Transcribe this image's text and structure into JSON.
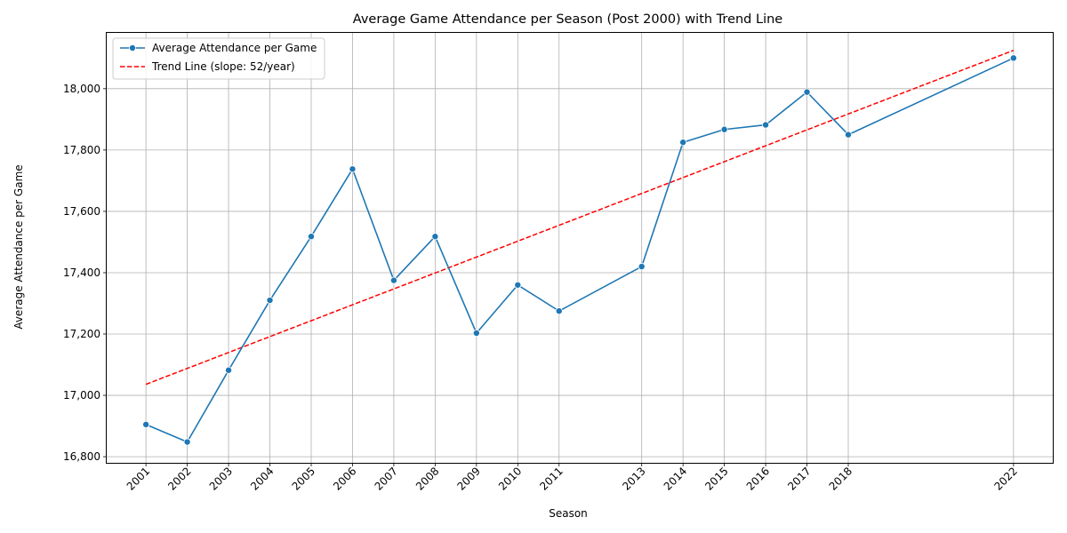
{
  "chart_data": {
    "type": "line",
    "title": "Average Game Attendance per Season (Post 2000) with Trend Line",
    "xlabel": "Season",
    "ylabel": "Average Attendance per Game",
    "x": [
      2001,
      2002,
      2003,
      2004,
      2005,
      2006,
      2007,
      2008,
      2009,
      2010,
      2011,
      2013,
      2014,
      2015,
      2016,
      2017,
      2018,
      2022
    ],
    "x_tick_labels": [
      "2001",
      "2002",
      "2003",
      "2004",
      "2005",
      "2006",
      "2007",
      "2008",
      "2009",
      "2010",
      "2011",
      "2013",
      "2014",
      "2015",
      "2016",
      "2017",
      "2018",
      "2022"
    ],
    "y_ticks": [
      16800,
      17000,
      17200,
      17400,
      17600,
      17800,
      18000
    ],
    "y_tick_labels": [
      "16,800",
      "17,000",
      "17,200",
      "17,400",
      "17,600",
      "17,800",
      "18,000"
    ],
    "xlim": [
      2000.05,
      2022.95
    ],
    "ylim": [
      16780,
      18182
    ],
    "grid": true,
    "legend_position": "top-left",
    "series": [
      {
        "name": "Average Attendance per Game",
        "color": "#1f77b4",
        "style": "solid",
        "marker": "circle",
        "values": [
          16905,
          16848,
          17082,
          17310,
          17518,
          17738,
          17375,
          17518,
          17203,
          17360,
          17275,
          17420,
          17825,
          17867,
          17882,
          17989,
          17850,
          18100
        ]
      },
      {
        "name": "Trend Line (slope: 52/year)",
        "color": "#ff0000",
        "style": "dashed",
        "marker": "none",
        "x": [
          2001,
          2022
        ],
        "values": [
          17036,
          18125
        ]
      }
    ]
  }
}
